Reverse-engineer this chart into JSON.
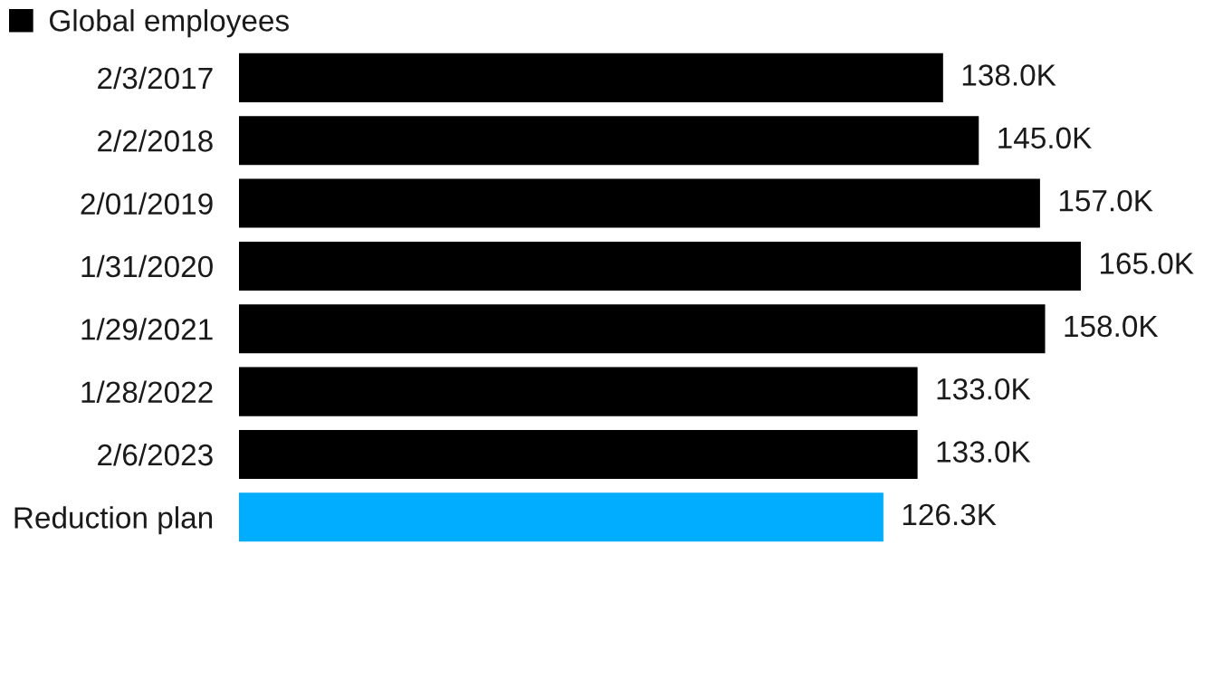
{
  "chart_data": {
    "type": "bar",
    "orientation": "horizontal",
    "categories": [
      "2/3/2017",
      "2/2/2018",
      "2/01/2019",
      "1/31/2020",
      "1/29/2021",
      "1/28/2022",
      "2/6/2023",
      "Reduction plan"
    ],
    "series": [
      {
        "name": "Global employees",
        "color": "#000000",
        "colors": [
          "#000000",
          "#000000",
          "#000000",
          "#000000",
          "#000000",
          "#000000",
          "#000000",
          "#00adff"
        ],
        "values": [
          138.0,
          145.0,
          157.0,
          165.0,
          158.0,
          133.0,
          133.0,
          126.3
        ],
        "value_labels": [
          "138.0K",
          "145.0K",
          "157.0K",
          "165.0K",
          "158.0K",
          "133.0K",
          "133.0K",
          "126.3K"
        ]
      }
    ],
    "legend": "top left",
    "grid": false
  }
}
